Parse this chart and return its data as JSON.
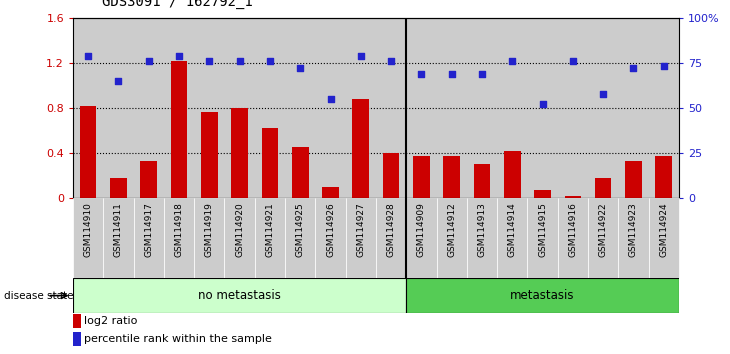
{
  "title": "GDS3091 / 162792_1",
  "samples": [
    "GSM114910",
    "GSM114911",
    "GSM114917",
    "GSM114918",
    "GSM114919",
    "GSM114920",
    "GSM114921",
    "GSM114925",
    "GSM114926",
    "GSM114927",
    "GSM114928",
    "GSM114909",
    "GSM114912",
    "GSM114913",
    "GSM114914",
    "GSM114915",
    "GSM114916",
    "GSM114922",
    "GSM114923",
    "GSM114924"
  ],
  "log2_ratio": [
    0.82,
    0.18,
    0.33,
    1.22,
    0.76,
    0.8,
    0.62,
    0.45,
    0.1,
    0.88,
    0.4,
    0.37,
    0.37,
    0.3,
    0.42,
    0.07,
    0.02,
    0.18,
    0.33,
    0.37
  ],
  "pct_rank": [
    79,
    65,
    76,
    79,
    76,
    76,
    76,
    72,
    55,
    79,
    76,
    69,
    69,
    69,
    76,
    52,
    76,
    58,
    72,
    73
  ],
  "no_metastasis_count": 11,
  "metastasis_count": 9,
  "ylim_left": [
    0,
    1.6
  ],
  "ylim_right": [
    0,
    100
  ],
  "yticks_left": [
    0,
    0.4,
    0.8,
    1.2,
    1.6
  ],
  "ytick_labels_left": [
    "0",
    "0.4",
    "0.8",
    "1.2",
    "1.6"
  ],
  "yticks_right": [
    0,
    25,
    50,
    75,
    100
  ],
  "ytick_labels_right": [
    "0",
    "25",
    "50",
    "75",
    "100%"
  ],
  "bar_color": "#cc0000",
  "dot_color": "#2222cc",
  "no_meta_color": "#ccffcc",
  "meta_color": "#55cc55",
  "cell_bg_color": "#cccccc",
  "legend_bar_label": "log2 ratio",
  "legend_dot_label": "percentile rank within the sample",
  "disease_state_label": "disease state",
  "no_meta_label": "no metastasis",
  "meta_label": "metastasis"
}
